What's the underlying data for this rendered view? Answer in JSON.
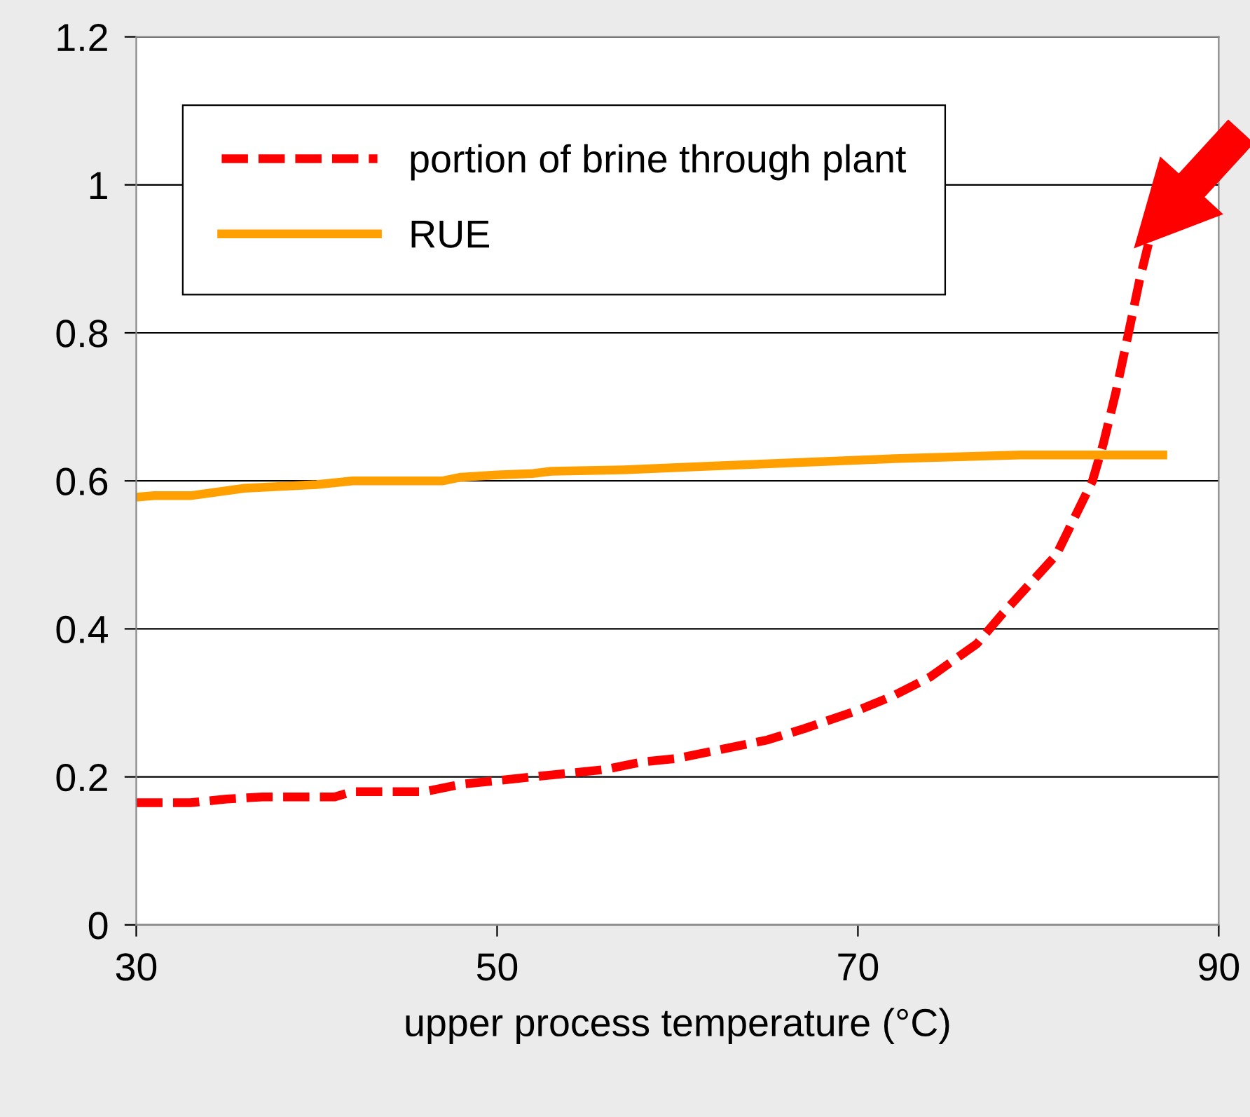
{
  "chart_data": {
    "type": "line",
    "xlabel": "upper process temperature (°C)",
    "xlim": [
      30,
      90
    ],
    "xticks": [
      30,
      50,
      70,
      90
    ],
    "ylim": [
      0,
      1.2
    ],
    "yticks": [
      0,
      0.2,
      0.4,
      0.6,
      0.8,
      1,
      1.2
    ],
    "grid": "y",
    "legend": "top left",
    "marker": "none",
    "series": [
      {
        "name": "portion of brine through plant",
        "color": "#ff0000",
        "line_style": "dashed",
        "x": [
          30,
          33,
          35,
          37,
          41,
          42,
          46,
          48,
          52,
          56,
          58,
          60,
          62,
          65,
          67,
          70,
          72,
          74,
          76.6,
          78,
          79.5,
          81,
          82,
          83,
          83.6,
          84.3,
          85,
          85.6,
          86.1
        ],
        "values": [
          0.165,
          0.165,
          0.17,
          0.173,
          0.173,
          0.18,
          0.18,
          0.19,
          0.2,
          0.21,
          0.22,
          0.225,
          0.235,
          0.25,
          0.265,
          0.29,
          0.31,
          0.335,
          0.38,
          0.42,
          0.46,
          0.5,
          0.55,
          0.6,
          0.65,
          0.72,
          0.8,
          0.87,
          0.92
        ]
      },
      {
        "name": "RUE",
        "color": "#ffa000",
        "line_style": "solid",
        "x": [
          30,
          31,
          33,
          36,
          40,
          42,
          47,
          48,
          50,
          52,
          53,
          57,
          62,
          67,
          72,
          79,
          86.9
        ],
        "values": [
          0.578,
          0.58,
          0.58,
          0.59,
          0.595,
          0.6,
          0.6,
          0.605,
          0.608,
          0.61,
          0.613,
          0.615,
          0.62,
          0.625,
          0.63,
          0.635,
          0.635
        ]
      }
    ]
  }
}
